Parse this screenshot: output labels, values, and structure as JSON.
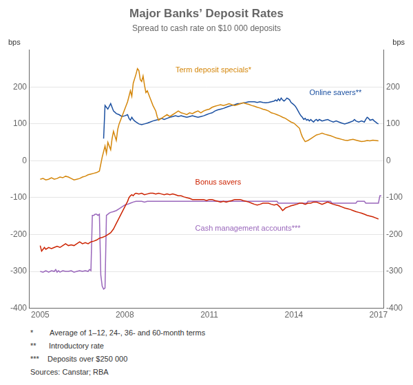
{
  "chart_data": {
    "type": "line",
    "title": "Major Banks’ Deposit Rates",
    "subtitle": "Spread to cash rate on $10 000 deposits",
    "ylabel": "bps",
    "y2label": "bps",
    "xlim": [
      2004.6,
      2017.2
    ],
    "xticks": [
      2005,
      2008,
      2011,
      2014,
      2017
    ],
    "ylim": [
      -400,
      300
    ],
    "yticks": [
      -400,
      -300,
      -200,
      -100,
      0,
      100,
      200
    ],
    "y2lim": [
      -400,
      300
    ],
    "y2ticks": [
      -400,
      -300,
      -200,
      -100,
      0,
      100,
      200
    ],
    "grid": "y",
    "footnotes": [
      "*        Average of 1–12, 24-, 36- and 60-month terms",
      "**      Introductory rate",
      "***    Deposits over $250 000",
      "Sources: Canstar; RBA"
    ],
    "annotations": [
      {
        "text": "Term deposit specials*",
        "x": 2009.8,
        "y": 240,
        "color": "#D4860A"
      },
      {
        "text": "Online savers**",
        "x": 2014.55,
        "y": 178,
        "color": "#1A4FA0"
      },
      {
        "text": "Bonus savers",
        "x": 2010.5,
        "y": -65,
        "color": "#CC2200"
      },
      {
        "text": "Cash management accounts***",
        "x": 2010.5,
        "y": -190,
        "color": "#9966BB"
      }
    ],
    "series": [
      {
        "name": "Term deposit specials*",
        "color": "#D4860A",
        "x": [
          2005.0,
          2005.1,
          2005.2,
          2005.3,
          2005.4,
          2005.5,
          2005.6,
          2005.7,
          2005.8,
          2005.9,
          2006.0,
          2006.1,
          2006.2,
          2006.3,
          2006.4,
          2006.5,
          2006.6,
          2006.7,
          2006.8,
          2006.9,
          2007.0,
          2007.1,
          2007.2,
          2007.3,
          2007.35,
          2007.4,
          2007.5,
          2007.55,
          2007.6,
          2007.7,
          2007.75,
          2007.8,
          2007.9,
          2008.0,
          2008.1,
          2008.2,
          2008.25,
          2008.3,
          2008.4,
          2008.45,
          2008.5,
          2008.55,
          2008.6,
          2008.65,
          2008.7,
          2008.75,
          2008.8,
          2008.9,
          2009.0,
          2009.1,
          2009.15,
          2009.2,
          2009.3,
          2009.4,
          2009.5,
          2009.6,
          2009.7,
          2009.8,
          2009.9,
          2010.0,
          2010.1,
          2010.2,
          2010.3,
          2010.4,
          2010.5,
          2010.6,
          2010.7,
          2010.8,
          2010.9,
          2011.0,
          2011.1,
          2011.2,
          2011.3,
          2011.4,
          2011.5,
          2011.6,
          2011.7,
          2011.8,
          2011.9,
          2012.0,
          2012.1,
          2012.2,
          2012.3,
          2012.4,
          2012.5,
          2012.6,
          2012.7,
          2012.8,
          2012.9,
          2013.0,
          2013.1,
          2013.2,
          2013.3,
          2013.4,
          2013.5,
          2013.6,
          2013.7,
          2013.8,
          2013.9,
          2014.0,
          2014.1,
          2014.2,
          2014.25,
          2014.3,
          2014.35,
          2014.4,
          2014.5,
          2014.6,
          2014.7,
          2014.8,
          2014.9,
          2015.0,
          2015.1,
          2015.2,
          2015.3,
          2015.4,
          2015.5,
          2015.6,
          2015.7,
          2015.8,
          2015.9,
          2016.0,
          2016.1,
          2016.2,
          2016.3,
          2016.4,
          2016.5,
          2016.6,
          2016.7,
          2016.8,
          2016.9,
          2017.0
        ],
        "values": [
          -50,
          -48,
          -52,
          -50,
          -46,
          -50,
          -48,
          -44,
          -46,
          -42,
          -44,
          -48,
          -52,
          -50,
          -48,
          -44,
          -42,
          -38,
          -36,
          -34,
          -32,
          -28,
          10,
          40,
          20,
          50,
          30,
          60,
          80,
          55,
          85,
          100,
          120,
          140,
          160,
          190,
          175,
          210,
          235,
          250,
          245,
          220,
          215,
          230,
          205,
          185,
          190,
          170,
          150,
          135,
          120,
          110,
          115,
          120,
          125,
          120,
          125,
          130,
          135,
          130,
          128,
          125,
          130,
          128,
          132,
          135,
          130,
          135,
          138,
          140,
          145,
          148,
          150,
          152,
          150,
          152,
          155,
          152,
          150,
          152,
          155,
          157,
          155,
          153,
          150,
          148,
          145,
          143,
          140,
          138,
          135,
          130,
          128,
          125,
          122,
          118,
          115,
          110,
          105,
          102,
          95,
          88,
          75,
          65,
          58,
          52,
          55,
          60,
          65,
          70,
          72,
          75,
          72,
          70,
          68,
          65,
          62,
          60,
          58,
          56,
          55,
          57,
          58,
          56,
          54,
          52,
          53,
          55,
          54,
          56,
          55,
          54
        ]
      },
      {
        "name": "Online savers**",
        "color": "#1A4FA0",
        "x": [
          2007.25,
          2007.3,
          2007.35,
          2007.4,
          2007.5,
          2007.55,
          2007.6,
          2007.7,
          2007.8,
          2007.9,
          2008.0,
          2008.1,
          2008.15,
          2008.2,
          2008.25,
          2008.3,
          2008.35,
          2008.4,
          2008.5,
          2008.6,
          2008.7,
          2008.8,
          2008.9,
          2009.0,
          2009.1,
          2009.2,
          2009.3,
          2009.4,
          2009.5,
          2009.6,
          2009.7,
          2009.8,
          2009.9,
          2010.0,
          2010.1,
          2010.2,
          2010.3,
          2010.4,
          2010.5,
          2010.6,
          2010.7,
          2010.8,
          2010.9,
          2011.0,
          2011.1,
          2011.2,
          2011.3,
          2011.4,
          2011.5,
          2011.6,
          2011.7,
          2011.8,
          2011.9,
          2012.0,
          2012.1,
          2012.2,
          2012.3,
          2012.4,
          2012.5,
          2012.6,
          2012.7,
          2012.8,
          2012.9,
          2013.0,
          2013.1,
          2013.2,
          2013.3,
          2013.35,
          2013.4,
          2013.45,
          2013.5,
          2013.55,
          2013.6,
          2013.65,
          2013.7,
          2013.75,
          2013.8,
          2013.85,
          2013.9,
          2013.95,
          2014.0,
          2014.05,
          2014.1,
          2014.15,
          2014.2,
          2014.25,
          2014.3,
          2014.35,
          2014.4,
          2014.45,
          2014.5,
          2014.55,
          2014.6,
          2014.65,
          2014.7,
          2014.75,
          2014.8,
          2014.85,
          2014.9,
          2014.95,
          2015.0,
          2015.1,
          2015.2,
          2015.3,
          2015.4,
          2015.5,
          2015.6,
          2015.7,
          2015.8,
          2015.9,
          2016.0,
          2016.1,
          2016.15,
          2016.2,
          2016.3,
          2016.4,
          2016.5,
          2016.55,
          2016.6,
          2016.65,
          2016.7,
          2016.8,
          2016.85,
          2016.9,
          2016.95,
          2017.0
        ],
        "values": [
          60,
          150,
          145,
          140,
          155,
          145,
          135,
          128,
          125,
          120,
          122,
          125,
          115,
          110,
          118,
          112,
          108,
          105,
          100,
          98,
          100,
          102,
          105,
          108,
          110,
          112,
          115,
          112,
          115,
          118,
          120,
          122,
          120,
          122,
          120,
          118,
          120,
          122,
          120,
          118,
          120,
          122,
          125,
          128,
          130,
          135,
          138,
          140,
          142,
          145,
          148,
          150,
          152,
          155,
          155,
          157,
          158,
          160,
          160,
          160,
          158,
          160,
          158,
          157,
          158,
          160,
          162,
          165,
          162,
          168,
          163,
          170,
          165,
          162,
          165,
          170,
          168,
          165,
          158,
          155,
          152,
          148,
          142,
          135,
          128,
          122,
          118,
          112,
          115,
          110,
          112,
          108,
          112,
          108,
          105,
          110,
          112,
          108,
          112,
          110,
          108,
          110,
          112,
          108,
          105,
          108,
          105,
          102,
          100,
          102,
          105,
          108,
          112,
          108,
          105,
          108,
          105,
          112,
          118,
          115,
          110,
          112,
          108,
          105,
          102,
          100
        ]
      },
      {
        "name": "Bonus savers",
        "color": "#CC2200",
        "x": [
          2005.0,
          2005.05,
          2005.1,
          2005.15,
          2005.2,
          2005.3,
          2005.4,
          2005.5,
          2005.6,
          2005.7,
          2005.8,
          2005.9,
          2006.0,
          2006.1,
          2006.2,
          2006.3,
          2006.4,
          2006.5,
          2006.6,
          2006.7,
          2006.8,
          2006.9,
          2007.0,
          2007.1,
          2007.2,
          2007.3,
          2007.4,
          2007.5,
          2007.6,
          2007.7,
          2007.8,
          2007.9,
          2008.0,
          2008.1,
          2008.15,
          2008.2,
          2008.25,
          2008.3,
          2008.35,
          2008.4,
          2008.5,
          2008.6,
          2008.7,
          2008.8,
          2008.9,
          2009.0,
          2009.1,
          2009.2,
          2009.3,
          2009.4,
          2009.5,
          2009.6,
          2009.7,
          2009.8,
          2009.9,
          2010.0,
          2010.1,
          2010.2,
          2010.3,
          2010.4,
          2010.5,
          2010.6,
          2010.7,
          2010.8,
          2010.9,
          2011.0,
          2011.1,
          2011.2,
          2011.3,
          2011.4,
          2011.5,
          2011.6,
          2011.7,
          2011.8,
          2011.9,
          2012.0,
          2012.1,
          2012.2,
          2012.3,
          2012.4,
          2012.5,
          2012.6,
          2012.7,
          2012.8,
          2012.9,
          2013.0,
          2013.1,
          2013.2,
          2013.3,
          2013.4,
          2013.5,
          2013.55,
          2013.6,
          2013.65,
          2013.7,
          2013.8,
          2013.9,
          2014.0,
          2014.1,
          2014.2,
          2014.3,
          2014.4,
          2014.5,
          2014.6,
          2014.7,
          2014.8,
          2014.9,
          2015.0,
          2015.1,
          2015.2,
          2015.3,
          2015.4,
          2015.5,
          2015.6,
          2015.7,
          2015.8,
          2015.9,
          2016.0,
          2016.1,
          2016.2,
          2016.3,
          2016.4,
          2016.5,
          2016.6,
          2016.7,
          2016.8,
          2016.9,
          2017.0
        ],
        "values": [
          -230,
          -245,
          -240,
          -235,
          -240,
          -235,
          -238,
          -235,
          -232,
          -235,
          -230,
          -225,
          -230,
          -228,
          -230,
          -225,
          -220,
          -225,
          -222,
          -225,
          -220,
          -218,
          -215,
          -210,
          -208,
          -205,
          -200,
          -195,
          -185,
          -170,
          -155,
          -140,
          -125,
          -110,
          -100,
          -95,
          -92,
          -95,
          -90,
          -88,
          -90,
          -88,
          -92,
          -90,
          -88,
          -88,
          -90,
          -88,
          -90,
          -92,
          -90,
          -92,
          -90,
          -92,
          -95,
          -95,
          -98,
          -100,
          -102,
          -105,
          -105,
          -105,
          -105,
          -105,
          -108,
          -105,
          -105,
          -108,
          -110,
          -112,
          -110,
          -112,
          -110,
          -108,
          -105,
          -105,
          -105,
          -108,
          -110,
          -112,
          -115,
          -118,
          -120,
          -118,
          -115,
          -115,
          -115,
          -118,
          -120,
          -118,
          -125,
          -130,
          -135,
          -132,
          -128,
          -125,
          -122,
          -120,
          -118,
          -115,
          -115,
          -118,
          -115,
          -115,
          -112,
          -112,
          -115,
          -118,
          -115,
          -112,
          -115,
          -118,
          -120,
          -122,
          -125,
          -128,
          -130,
          -132,
          -135,
          -138,
          -140,
          -142,
          -145,
          -148,
          -150,
          -152,
          -155,
          -158
        ]
      },
      {
        "name": "Cash management accounts***",
        "color": "#9966BB",
        "x": [
          2005.0,
          2005.1,
          2005.2,
          2005.3,
          2005.4,
          2005.5,
          2005.55,
          2005.6,
          2005.65,
          2005.7,
          2005.8,
          2005.9,
          2006.0,
          2006.1,
          2006.2,
          2006.3,
          2006.4,
          2006.5,
          2006.6,
          2006.7,
          2006.75,
          2006.8,
          2006.85,
          2006.9,
          2006.95,
          2007.0,
          2007.05,
          2007.1,
          2007.15,
          2007.2,
          2007.25,
          2007.3,
          2007.35,
          2007.4,
          2007.45,
          2007.5,
          2007.6,
          2007.7,
          2007.8,
          2007.9,
          2008.0,
          2008.1,
          2008.2,
          2008.3,
          2008.4,
          2008.5,
          2008.6,
          2008.7,
          2008.8,
          2008.9,
          2009.0,
          2009.5,
          2010.0,
          2010.5,
          2011.0,
          2011.5,
          2012.0,
          2012.5,
          2013.0,
          2013.4,
          2013.45,
          2013.5,
          2014.0,
          2014.45,
          2014.5,
          2014.55,
          2015.0,
          2015.3,
          2015.35,
          2015.4,
          2016.2,
          2016.25,
          2016.3,
          2016.5,
          2016.55,
          2016.6,
          2017.0,
          2017.05,
          2017.1
        ],
        "values": [
          -300,
          -302,
          -298,
          -302,
          -298,
          -300,
          -295,
          -302,
          -298,
          -302,
          -298,
          -300,
          -300,
          -298,
          -302,
          -300,
          -298,
          -300,
          -298,
          -300,
          -295,
          -298,
          -148,
          -148,
          -145,
          -145,
          -148,
          -145,
          -310,
          -340,
          -348,
          -345,
          -148,
          -145,
          -142,
          -140,
          -138,
          -135,
          -130,
          -125,
          -120,
          -118,
          -115,
          -112,
          -110,
          -110,
          -110,
          -112,
          -110,
          -110,
          -110,
          -110,
          -110,
          -110,
          -110,
          -110,
          -110,
          -110,
          -110,
          -110,
          -115,
          -115,
          -115,
          -115,
          -110,
          -110,
          -110,
          -110,
          -115,
          -115,
          -115,
          -110,
          -110,
          -110,
          -115,
          -115,
          -115,
          -95,
          -95
        ]
      }
    ]
  }
}
